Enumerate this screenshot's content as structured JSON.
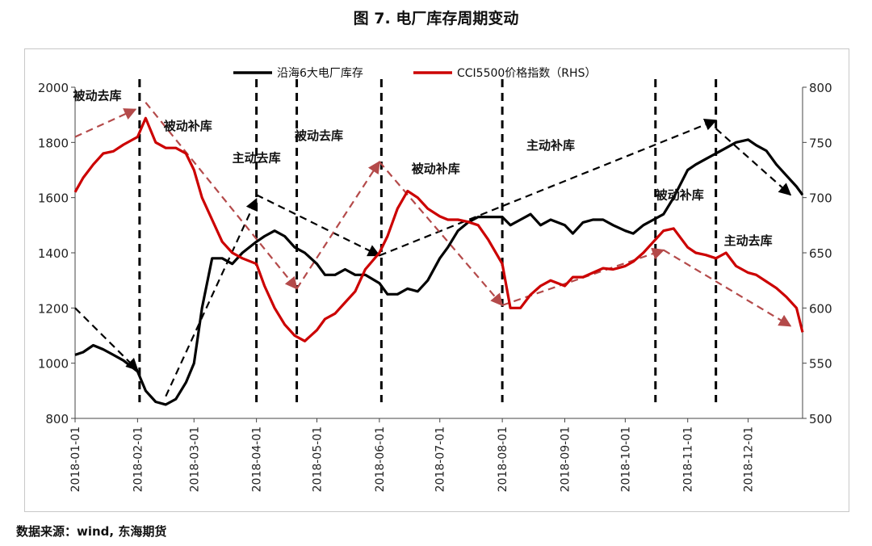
{
  "title": "图 7. 电厂库存周期变动",
  "source": "数据来源：wind, 东海期货",
  "chart_data": {
    "type": "line",
    "legend": [
      "沿海6大电厂库存",
      "CCI5500价格指数（RHS）"
    ],
    "legend_position": "top",
    "grid": false,
    "x_tick_labels": [
      "2018-01-01",
      "2018-02-01",
      "2018-03-01",
      "2018-04-01",
      "2018-05-01",
      "2018-06-01",
      "2018-07-01",
      "2018-08-01",
      "2018-09-01",
      "2018-10-01",
      "2018-11-01",
      "2018-12-01"
    ],
    "y_left": {
      "range": [
        800,
        2000
      ],
      "ticks": [
        800,
        1000,
        1200,
        1400,
        1600,
        1800,
        2000
      ]
    },
    "y_right": {
      "range": [
        500,
        800
      ],
      "ticks": [
        500,
        550,
        600,
        650,
        700,
        750,
        800
      ]
    },
    "series": [
      {
        "name": "沿海6大电厂库存",
        "axis": "left",
        "color": "#000000",
        "points": [
          [
            "2018-01-01",
            1030
          ],
          [
            "2018-01-05",
            1040
          ],
          [
            "2018-01-10",
            1065
          ],
          [
            "2018-01-15",
            1050
          ],
          [
            "2018-01-20",
            1030
          ],
          [
            "2018-01-25",
            1010
          ],
          [
            "2018-02-01",
            970
          ],
          [
            "2018-02-05",
            900
          ],
          [
            "2018-02-10",
            860
          ],
          [
            "2018-02-15",
            850
          ],
          [
            "2018-02-20",
            870
          ],
          [
            "2018-02-25",
            930
          ],
          [
            "2018-03-01",
            1000
          ],
          [
            "2018-03-05",
            1200
          ],
          [
            "2018-03-10",
            1380
          ],
          [
            "2018-03-15",
            1380
          ],
          [
            "2018-03-20",
            1360
          ],
          [
            "2018-03-25",
            1400
          ],
          [
            "2018-04-01",
            1440
          ],
          [
            "2018-04-05",
            1460
          ],
          [
            "2018-04-10",
            1480
          ],
          [
            "2018-04-15",
            1460
          ],
          [
            "2018-04-20",
            1420
          ],
          [
            "2018-04-25",
            1400
          ],
          [
            "2018-05-01",
            1360
          ],
          [
            "2018-05-05",
            1320
          ],
          [
            "2018-05-10",
            1320
          ],
          [
            "2018-05-15",
            1340
          ],
          [
            "2018-05-20",
            1320
          ],
          [
            "2018-05-25",
            1320
          ],
          [
            "2018-06-01",
            1290
          ],
          [
            "2018-06-05",
            1250
          ],
          [
            "2018-06-10",
            1250
          ],
          [
            "2018-06-15",
            1270
          ],
          [
            "2018-06-20",
            1260
          ],
          [
            "2018-06-25",
            1300
          ],
          [
            "2018-07-01",
            1380
          ],
          [
            "2018-07-05",
            1420
          ],
          [
            "2018-07-10",
            1480
          ],
          [
            "2018-07-15",
            1510
          ],
          [
            "2018-07-20",
            1530
          ],
          [
            "2018-07-25",
            1530
          ],
          [
            "2018-08-01",
            1530
          ],
          [
            "2018-08-05",
            1500
          ],
          [
            "2018-08-10",
            1520
          ],
          [
            "2018-08-15",
            1540
          ],
          [
            "2018-08-20",
            1500
          ],
          [
            "2018-08-25",
            1520
          ],
          [
            "2018-09-01",
            1500
          ],
          [
            "2018-09-05",
            1470
          ],
          [
            "2018-09-10",
            1510
          ],
          [
            "2018-09-15",
            1520
          ],
          [
            "2018-09-20",
            1520
          ],
          [
            "2018-09-25",
            1500
          ],
          [
            "2018-10-01",
            1480
          ],
          [
            "2018-10-05",
            1470
          ],
          [
            "2018-10-10",
            1500
          ],
          [
            "2018-10-15",
            1520
          ],
          [
            "2018-10-20",
            1540
          ],
          [
            "2018-10-25",
            1600
          ],
          [
            "2018-11-01",
            1700
          ],
          [
            "2018-11-05",
            1720
          ],
          [
            "2018-11-10",
            1740
          ],
          [
            "2018-11-15",
            1760
          ],
          [
            "2018-11-20",
            1780
          ],
          [
            "2018-11-25",
            1800
          ],
          [
            "2018-12-01",
            1810
          ],
          [
            "2018-12-05",
            1790
          ],
          [
            "2018-12-10",
            1770
          ],
          [
            "2018-12-15",
            1720
          ],
          [
            "2018-12-20",
            1680
          ],
          [
            "2018-12-25",
            1640
          ],
          [
            "2018-12-28",
            1610
          ]
        ]
      },
      {
        "name": "CCI5500价格指数（RHS）",
        "axis": "right",
        "color": "#cc0000",
        "points": [
          [
            "2018-01-01",
            705
          ],
          [
            "2018-01-05",
            718
          ],
          [
            "2018-01-10",
            730
          ],
          [
            "2018-01-15",
            740
          ],
          [
            "2018-01-20",
            742
          ],
          [
            "2018-01-25",
            748
          ],
          [
            "2018-02-01",
            755
          ],
          [
            "2018-02-05",
            772
          ],
          [
            "2018-02-10",
            750
          ],
          [
            "2018-02-15",
            745
          ],
          [
            "2018-02-20",
            745
          ],
          [
            "2018-02-25",
            740
          ],
          [
            "2018-03-01",
            725
          ],
          [
            "2018-03-05",
            700
          ],
          [
            "2018-03-10",
            680
          ],
          [
            "2018-03-15",
            660
          ],
          [
            "2018-03-20",
            650
          ],
          [
            "2018-03-25",
            645
          ],
          [
            "2018-04-01",
            640
          ],
          [
            "2018-04-05",
            620
          ],
          [
            "2018-04-10",
            600
          ],
          [
            "2018-04-15",
            585
          ],
          [
            "2018-04-20",
            575
          ],
          [
            "2018-04-25",
            570
          ],
          [
            "2018-05-01",
            580
          ],
          [
            "2018-05-05",
            590
          ],
          [
            "2018-05-10",
            595
          ],
          [
            "2018-05-15",
            605
          ],
          [
            "2018-05-20",
            615
          ],
          [
            "2018-05-25",
            635
          ],
          [
            "2018-06-01",
            650
          ],
          [
            "2018-06-05",
            665
          ],
          [
            "2018-06-10",
            690
          ],
          [
            "2018-06-15",
            706
          ],
          [
            "2018-06-20",
            700
          ],
          [
            "2018-06-25",
            690
          ],
          [
            "2018-07-01",
            683
          ],
          [
            "2018-07-05",
            680
          ],
          [
            "2018-07-10",
            680
          ],
          [
            "2018-07-15",
            678
          ],
          [
            "2018-07-20",
            675
          ],
          [
            "2018-07-25",
            662
          ],
          [
            "2018-08-01",
            640
          ],
          [
            "2018-08-05",
            600
          ],
          [
            "2018-08-10",
            600
          ],
          [
            "2018-08-15",
            612
          ],
          [
            "2018-08-20",
            620
          ],
          [
            "2018-08-25",
            625
          ],
          [
            "2018-09-01",
            620
          ],
          [
            "2018-09-05",
            628
          ],
          [
            "2018-09-10",
            628
          ],
          [
            "2018-09-15",
            632
          ],
          [
            "2018-09-20",
            636
          ],
          [
            "2018-09-25",
            635
          ],
          [
            "2018-10-01",
            638
          ],
          [
            "2018-10-05",
            642
          ],
          [
            "2018-10-10",
            650
          ],
          [
            "2018-10-15",
            660
          ],
          [
            "2018-10-20",
            670
          ],
          [
            "2018-10-25",
            672
          ],
          [
            "2018-11-01",
            655
          ],
          [
            "2018-11-05",
            650
          ],
          [
            "2018-11-10",
            648
          ],
          [
            "2018-11-15",
            645
          ],
          [
            "2018-11-20",
            650
          ],
          [
            "2018-11-25",
            638
          ],
          [
            "2018-12-01",
            632
          ],
          [
            "2018-12-05",
            630
          ],
          [
            "2018-12-10",
            624
          ],
          [
            "2018-12-15",
            618
          ],
          [
            "2018-12-20",
            610
          ],
          [
            "2018-12-25",
            600
          ],
          [
            "2018-12-28",
            578
          ]
        ]
      }
    ],
    "phase_dividers": [
      "2018-02-02",
      "2018-04-01",
      "2018-04-21",
      "2018-06-02",
      "2018-08-01",
      "2018-10-16",
      "2018-11-15"
    ],
    "annotations": [
      {
        "text": "被动去库",
        "x": "2018-01-12",
        "y_left": 1955
      },
      {
        "text": "被动补库",
        "x": "2018-02-26",
        "y_left": 1845
      },
      {
        "text": "主动去库",
        "x": "2018-04-01",
        "y_left": 1730
      },
      {
        "text": "被动去库",
        "x": "2018-05-02",
        "y_left": 1810
      },
      {
        "text": "被动补库",
        "x": "2018-06-29",
        "y_left": 1690
      },
      {
        "text": "主动补库",
        "x": "2018-08-25",
        "y_left": 1775
      },
      {
        "text": "被动补库",
        "x": "2018-10-28",
        "y_left": 1595
      },
      {
        "text": "主动去库",
        "x": "2018-12-01",
        "y_left": 1430
      }
    ],
    "trend_arrows": [
      {
        "color": "black",
        "from": [
          "2018-01-01",
          1200
        ],
        "to": [
          "2018-02-01",
          975
        ]
      },
      {
        "color": "black",
        "from": [
          "2018-02-15",
          880
        ],
        "to": [
          "2018-04-01",
          1595
        ]
      },
      {
        "color": "black",
        "from": [
          "2018-04-01",
          1610
        ],
        "to": [
          "2018-06-01",
          1390
        ]
      },
      {
        "color": "black",
        "from": [
          "2018-06-01",
          1390
        ],
        "to": [
          "2018-11-15",
          1880
        ]
      },
      {
        "color": "brown",
        "from": [
          "2018-01-01",
          1820
        ],
        "to": [
          "2018-01-31",
          1920
        ]
      },
      {
        "color": "brown",
        "from": [
          "2018-02-05",
          1945
        ],
        "to": [
          "2018-04-21",
          1270
        ]
      },
      {
        "color": "brown",
        "from": [
          "2018-04-21",
          1270
        ],
        "to": [
          "2018-06-01",
          1730
        ]
      },
      {
        "color": "brown",
        "from": [
          "2018-06-01",
          1730
        ],
        "to": [
          "2018-08-01",
          1210
        ]
      },
      {
        "color": "brown",
        "from": [
          "2018-08-01",
          1210
        ],
        "to": [
          "2018-10-20",
          1410
        ]
      },
      {
        "color": "brown",
        "from": [
          "2018-10-20",
          1410
        ],
        "to": [
          "2018-12-22",
          1135
        ]
      },
      {
        "color": "black",
        "from": [
          "2018-11-15",
          1850
        ],
        "to": [
          "2018-12-22",
          1610
        ]
      }
    ]
  }
}
